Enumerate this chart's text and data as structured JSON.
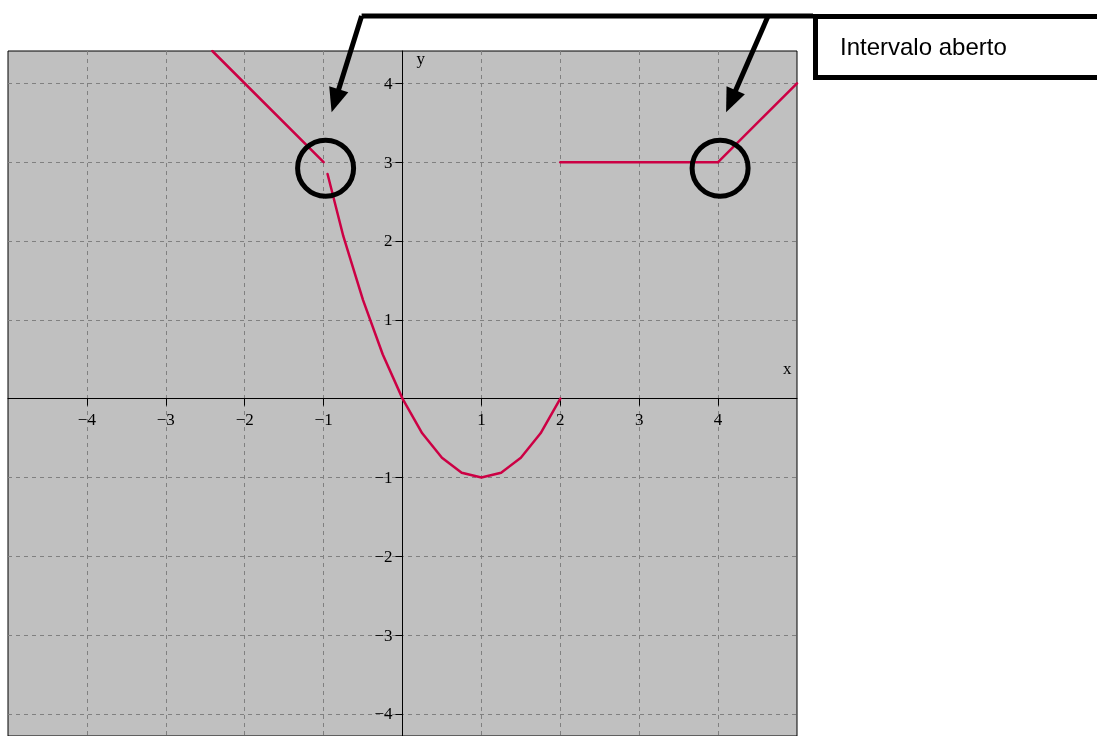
{
  "chart_data": {
    "type": "line",
    "xlabel": "x",
    "ylabel": "y",
    "xlim": [
      -5,
      5
    ],
    "ylim": [
      -4.28,
      4.41
    ],
    "xticks": [
      -4,
      -3,
      -2,
      -1,
      1,
      2,
      3,
      4
    ],
    "yticks": [
      -4,
      -3,
      -2,
      -1,
      1,
      2,
      3,
      4
    ],
    "grid": true,
    "marker": "none",
    "line_style": "solid",
    "annotations": [
      "Intervalo aberto"
    ],
    "series": [
      {
        "color": "#cc0044",
        "x": [
          -2.41,
          -1
        ],
        "values": [
          4.41,
          3
        ]
      },
      {
        "color": "#cc0044",
        "x": [
          -0.95,
          -0.75,
          -0.5,
          -0.25,
          0,
          0.25,
          0.5,
          0.75,
          1,
          1.25,
          1.5,
          1.75,
          2
        ],
        "values": [
          2.85,
          2.06,
          1.25,
          0.56,
          0,
          -0.44,
          -0.75,
          -0.94,
          -1,
          -0.94,
          -0.75,
          -0.44,
          0
        ]
      },
      {
        "color": "#cc0044",
        "x": [
          2,
          4
        ],
        "values": [
          3,
          3
        ]
      },
      {
        "color": "#cc0044",
        "x": [
          4,
          5
        ],
        "values": [
          3,
          4
        ]
      }
    ]
  }
}
